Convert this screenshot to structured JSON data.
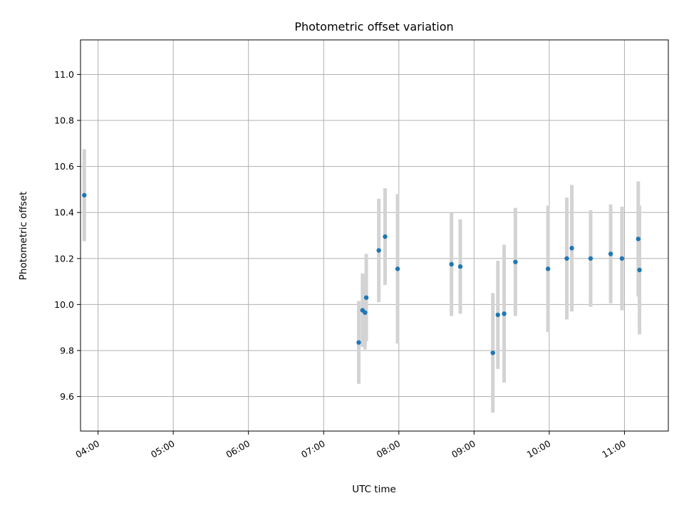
{
  "chart_data": {
    "type": "scatter",
    "title": "Photometric offset variation",
    "xlabel": "UTC time",
    "ylabel": "Photometric offset",
    "xlim": [
      "03:46",
      "11:35"
    ],
    "ylim": [
      9.45,
      11.15
    ],
    "x_ticks": [
      "04:00",
      "05:00",
      "06:00",
      "07:00",
      "08:00",
      "09:00",
      "10:00",
      "11:00"
    ],
    "y_ticks": [
      9.6,
      9.8,
      10.0,
      10.2,
      10.4,
      10.6,
      10.8,
      11.0
    ],
    "grid": true,
    "marker_color": "#1f77b4",
    "errorbar_color": "#d3d3d3",
    "series": [
      {
        "points": [
          {
            "x": "03:49",
            "y": 10.475,
            "err": 0.2
          },
          {
            "x": "07:28",
            "y": 9.835,
            "err": 0.18
          },
          {
            "x": "07:31",
            "y": 9.975,
            "err": 0.16
          },
          {
            "x": "07:33",
            "y": 9.965,
            "err": 0.16
          },
          {
            "x": "07:34",
            "y": 10.03,
            "err": 0.19
          },
          {
            "x": "07:44",
            "y": 10.235,
            "err": 0.225
          },
          {
            "x": "07:49",
            "y": 10.295,
            "err": 0.21
          },
          {
            "x": "07:59",
            "y": 10.155,
            "err": 0.325
          },
          {
            "x": "08:42",
            "y": 10.175,
            "err": 0.225
          },
          {
            "x": "08:49",
            "y": 10.165,
            "err": 0.205
          },
          {
            "x": "09:15",
            "y": 9.79,
            "err": 0.26
          },
          {
            "x": "09:19",
            "y": 9.955,
            "err": 0.235
          },
          {
            "x": "09:24",
            "y": 9.96,
            "err": 0.3
          },
          {
            "x": "09:33",
            "y": 10.185,
            "err": 0.235
          },
          {
            "x": "09:59",
            "y": 10.155,
            "err": 0.275
          },
          {
            "x": "10:14",
            "y": 10.2,
            "err": 0.265
          },
          {
            "x": "10:18",
            "y": 10.245,
            "err": 0.275
          },
          {
            "x": "10:33",
            "y": 10.2,
            "err": 0.21
          },
          {
            "x": "10:49",
            "y": 10.22,
            "err": 0.215
          },
          {
            "x": "10:58",
            "y": 10.2,
            "err": 0.225
          },
          {
            "x": "11:11",
            "y": 10.285,
            "err": 0.25
          },
          {
            "x": "11:12",
            "y": 10.15,
            "err": 0.28
          }
        ]
      }
    ]
  }
}
